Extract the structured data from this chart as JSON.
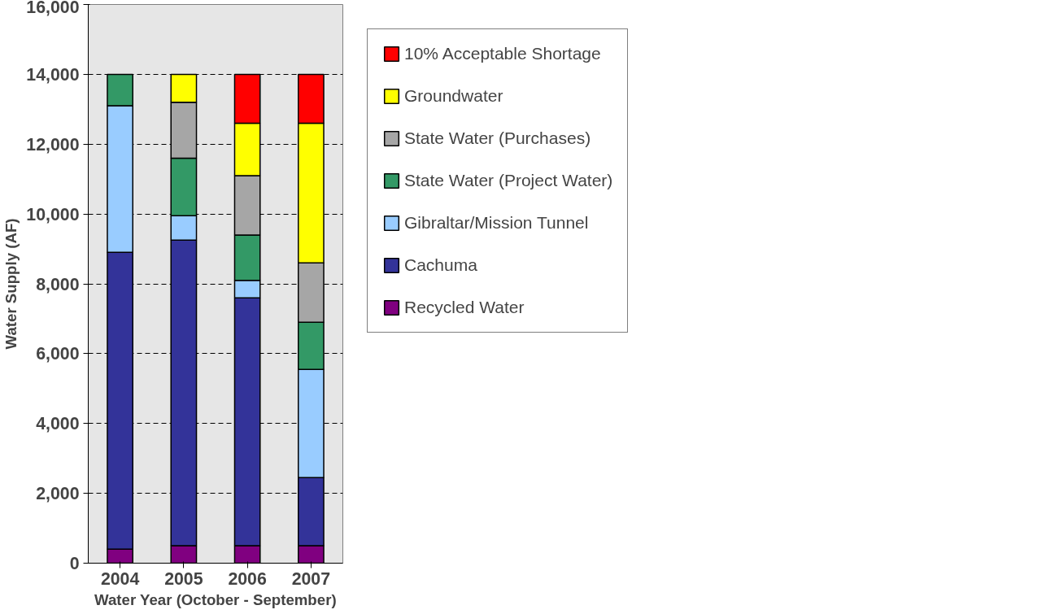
{
  "chart_data": {
    "type": "bar",
    "stacked": true,
    "xlabel": "Water Year (October - September)",
    "ylabel": "Water Supply (AF)",
    "categories": [
      "2004",
      "2005",
      "2006",
      "2007"
    ],
    "series": [
      {
        "name": "Recycled Water",
        "color": "#800080",
        "values": [
          400,
          500,
          500,
          500
        ]
      },
      {
        "name": "Cachuma",
        "color": "#333399",
        "values": [
          8500,
          8750,
          7100,
          1950
        ]
      },
      {
        "name": "Gibraltar/Mission Tunnel",
        "color": "#99ccff",
        "values": [
          4200,
          700,
          500,
          3100
        ]
      },
      {
        "name": "State Water (Project Water)",
        "color": "#339966",
        "values": [
          900,
          1650,
          1300,
          1350
        ]
      },
      {
        "name": "State Water (Purchases)",
        "color": "#a6a6a6",
        "values": [
          null,
          1600,
          1700,
          1700
        ]
      },
      {
        "name": "Groundwater",
        "color": "#ffff00",
        "values": [
          null,
          800,
          1500,
          4000
        ]
      },
      {
        "name": "10% Acceptable Shortage",
        "color": "#ff0000",
        "values": [
          null,
          null,
          1400,
          1400
        ]
      }
    ],
    "ylim": [
      0,
      16000
    ],
    "yticks": [
      {
        "value": 0,
        "label": "0"
      },
      {
        "value": 2000,
        "label": "2,000"
      },
      {
        "value": 4000,
        "label": "4,000"
      },
      {
        "value": 6000,
        "label": "6,000"
      },
      {
        "value": 8000,
        "label": "8,000"
      },
      {
        "value": 10000,
        "label": "10,000"
      },
      {
        "value": 12000,
        "label": "12,000"
      },
      {
        "value": 14000,
        "label": "14,000"
      },
      {
        "value": 16000,
        "label": "16,000"
      }
    ],
    "grid": "y",
    "legend": "right"
  }
}
